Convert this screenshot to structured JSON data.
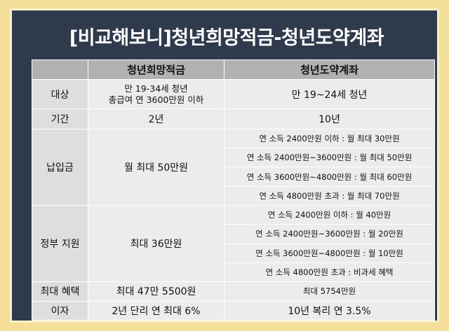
{
  "title": "[비교해보니]청년희망적금-청년도약계좌",
  "headers": [
    "",
    "청년희망적금",
    "청년도약계좌"
  ],
  "rows": {
    "target": {
      "label": "대상",
      "a_line1": "만 19-34세 청년",
      "a_line2": "총급여 연 3600만원 이하",
      "b": "만 19~24세 청년"
    },
    "period": {
      "label": "기간",
      "a": "2년",
      "b": "10년"
    },
    "payment": {
      "label": "납입금",
      "a": "월 최대 50만원",
      "b": [
        "연 소득 2400만원 이하 : 월 최대 30만원",
        "연 소득 2400만원~3600만원 : 월 최대 50만원",
        "연 소득 3600만원~4800만원 : 월 최대 60만원",
        "연 소득 4800만원 초과 : 월 최대 70만원"
      ]
    },
    "support": {
      "label": "정부 지원",
      "a": "최대 36만원",
      "b": [
        "연 소득 2400만원 이하 : 월 40만원",
        "연 소득 2400만원~3600만원 : 월 20만원",
        "연 소득 3600만원~4800만원 : 월 10만원",
        "연 소득 4800만원 초과 : 비과세 혜택"
      ]
    },
    "benefit": {
      "label": "최대 혜택",
      "a": "최대 47만 5500원",
      "b": "최대 5754만원"
    },
    "interest": {
      "label": "이자",
      "a": "2년 단리 연 최대 6%",
      "b": "10년 복리 연 3.5%"
    }
  }
}
